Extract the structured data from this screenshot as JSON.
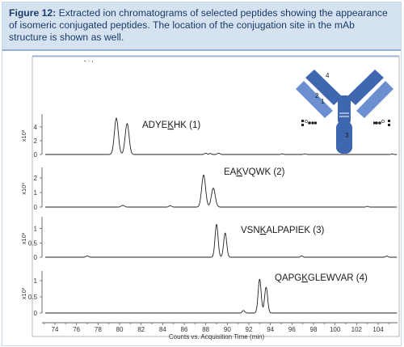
{
  "caption": {
    "label": "Figure 12:",
    "text": " Extracted ion chromatograms of selected peptides showing the appearance of isomeric conjugated peptides. The location of the conjugation site in the mAb structure is shown as well."
  },
  "chart_data": {
    "type": "line",
    "xlabel": "Counts vs. Acquisition Time (min)",
    "x_ticks": [
      74,
      76,
      78,
      80,
      82,
      84,
      86,
      88,
      90,
      92,
      94,
      96,
      98,
      100,
      102,
      104
    ],
    "xlim": [
      72.8,
      105.8
    ],
    "y_unit": "x10³",
    "panels": [
      {
        "label_prefix": "ADYE",
        "label_k": "K",
        "label_suffix": "HK (1)",
        "y_ticks": [
          0,
          2,
          4
        ],
        "ylim": [
          0,
          5.4
        ],
        "peaks": [
          [
            79.7,
            5.3,
            0.18
          ],
          [
            80.7,
            4.5,
            0.18
          ],
          [
            88.0,
            0.2,
            0.1
          ],
          [
            88.4,
            0.15,
            0.1
          ],
          [
            89.2,
            0.18,
            0.12
          ],
          [
            95.1,
            0.1,
            0.1
          ],
          [
            97.2,
            0.1,
            0.1
          ],
          [
            105.3,
            0.08,
            0.1
          ]
        ]
      },
      {
        "label_prefix": "EA",
        "label_k": "K",
        "label_suffix": "VQWK (2)",
        "y_ticks": [
          0,
          1,
          2
        ],
        "ylim": [
          0,
          2.5
        ],
        "peaks": [
          [
            80.3,
            0.12,
            0.15
          ],
          [
            84.7,
            0.1,
            0.12
          ],
          [
            87.8,
            2.2,
            0.18
          ],
          [
            88.7,
            1.3,
            0.18
          ],
          [
            103.0,
            0.05,
            0.1
          ]
        ]
      },
      {
        "label_prefix": "VSN",
        "label_k": "K",
        "label_suffix": "ALPAPIEK (3)",
        "y_ticks": [
          0,
          0.5,
          1
        ],
        "ylim": [
          0,
          1.3
        ],
        "peaks": [
          [
            77.0,
            0.05,
            0.12
          ],
          [
            89.0,
            1.15,
            0.14
          ],
          [
            89.8,
            0.85,
            0.14
          ],
          [
            96.9,
            0.05,
            0.1
          ],
          [
            104.8,
            0.04,
            0.1
          ]
        ]
      },
      {
        "label_prefix": "QAPG",
        "label_k": "K",
        "label_suffix": "GLEWVAR (4)",
        "y_ticks": [
          0,
          0.5,
          1
        ],
        "ylim": [
          0,
          1.2
        ],
        "peaks": [
          [
            91.5,
            0.08,
            0.12
          ],
          [
            93.0,
            1.05,
            0.14
          ],
          [
            93.6,
            0.8,
            0.14
          ]
        ]
      }
    ]
  },
  "antibody": {
    "site_labels": [
      "4",
      "2",
      "1",
      "3"
    ],
    "colors": {
      "main": "#3f67b0",
      "light": "#6b8fd0",
      "dark": "#2e4f8f"
    }
  },
  "stray_marks": "˘  `  '"
}
